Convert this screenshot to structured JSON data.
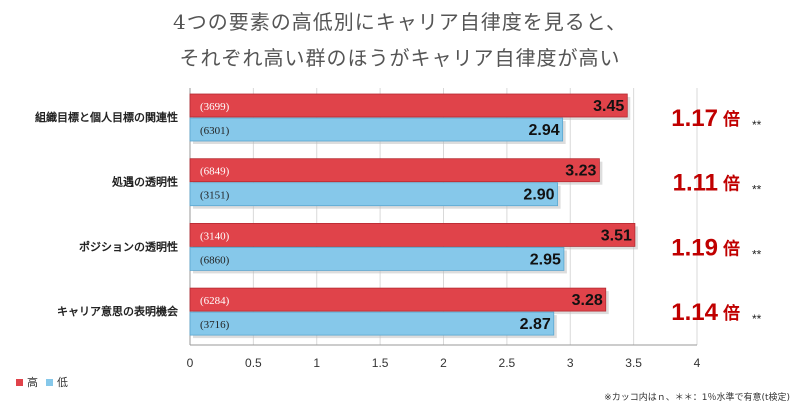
{
  "title": {
    "line1": "4つの要素の高低別にキャリア自律度を見ると、",
    "line2": "それぞれ高い群のほうがキャリア自律度が高い"
  },
  "chart_data": {
    "type": "bar",
    "orientation": "horizontal",
    "categories": [
      "組織目標と個人目標の関連性",
      "処遇の透明性",
      "ポジションの透明性",
      "キャリア意思の表明機会"
    ],
    "series": [
      {
        "name": "高",
        "color": "#e0434a",
        "values": [
          3.45,
          3.23,
          3.51,
          3.28
        ],
        "labels": [
          "3.45",
          "3.23",
          "3.51",
          "3.28"
        ],
        "n": [
          "(3699)",
          "(6849)",
          "(3140)",
          "(6284)"
        ]
      },
      {
        "name": "低",
        "color": "#86c8ea",
        "values": [
          2.94,
          2.9,
          2.95,
          2.87
        ],
        "labels": [
          "2.94",
          "2.90",
          "2.95",
          "2.87"
        ],
        "n": [
          "(6301)",
          "(3151)",
          "(6860)",
          "(3716)"
        ]
      }
    ],
    "ratios": [
      "1.17",
      "1.11",
      "1.19",
      "1.14"
    ],
    "ratio_unit": "倍",
    "significance": "**",
    "xlim": [
      0,
      4
    ],
    "xticks": [
      "0",
      "0.5",
      "1",
      "1.5",
      "2",
      "2.5",
      "3",
      "3.5",
      "4"
    ],
    "grid": true,
    "legend_position": "bottom-left"
  },
  "legend": {
    "high": "高",
    "low": "低"
  },
  "footnote": "※カッコ内はｎ、＊＊：1％水準で有意(t検定)",
  "colors": {
    "high": "#e0434a",
    "low": "#86c8ea",
    "ratio": "#c00000"
  }
}
